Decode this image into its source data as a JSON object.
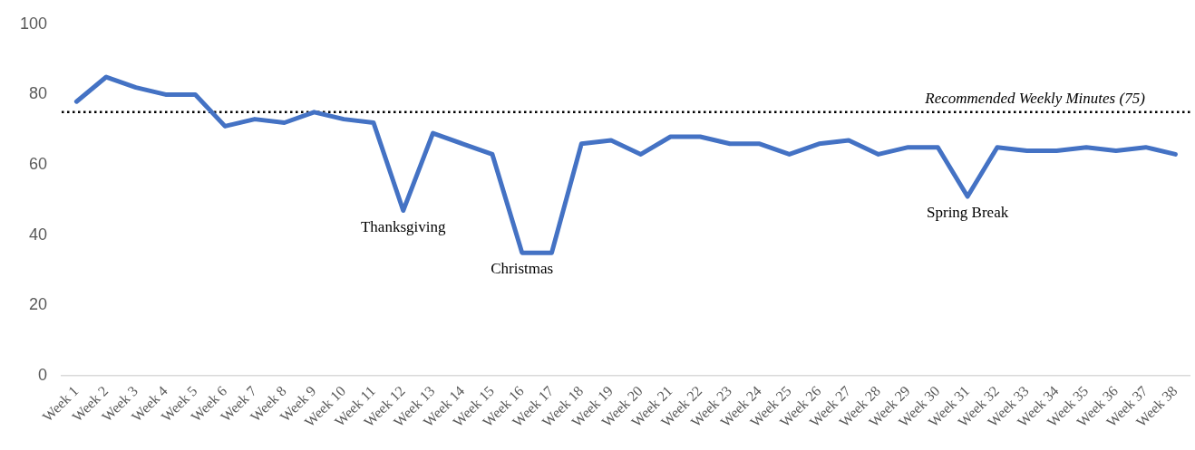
{
  "chart_data": {
    "type": "line",
    "categories": [
      "Week 1",
      "Week 2",
      "Week 3",
      "Week 4",
      "Week 5",
      "Week 6",
      "Week 7",
      "Week 8",
      "Week 9",
      "Week 10",
      "Week 11",
      "Week 12",
      "Week 13",
      "Week 14",
      "Week 15",
      "Week 16",
      "Week 17",
      "Week 18",
      "Week 19",
      "Week 20",
      "Week 21",
      "Week 22",
      "Week 23",
      "Week 24",
      "Week 25",
      "Week 26",
      "Week 27",
      "Week 28",
      "Week 29",
      "Week 30",
      "Week 31",
      "Week 32",
      "Week 33",
      "Week 34",
      "Week 35",
      "Week 36",
      "Week 37",
      "Week 38"
    ],
    "values": [
      78,
      85,
      82,
      80,
      80,
      71,
      73,
      72,
      75,
      73,
      72,
      47,
      69,
      66,
      63,
      35,
      35,
      66,
      67,
      63,
      68,
      68,
      66,
      66,
      63,
      66,
      67,
      63,
      65,
      65,
      51,
      65,
      64,
      64,
      65,
      64,
      65,
      63
    ],
    "color": "#4472c4",
    "ylim": [
      0,
      100
    ],
    "yticks": [
      0,
      20,
      40,
      60,
      80,
      100
    ],
    "grid": false,
    "legend": false,
    "marker": "none",
    "line_style": "solid",
    "ref_lines": [
      {
        "axis": "y",
        "value": 75,
        "label": "Recommended Weekly Minutes (75)",
        "color": "#000000",
        "line_style": "dotted"
      }
    ],
    "annotations": [
      {
        "text": "Thanksgiving",
        "x": "Week 12",
        "y": 47
      },
      {
        "text": "Christmas",
        "x": "Week 16",
        "y": 35
      },
      {
        "text": "Spring Break",
        "x": "Week 31",
        "y": 51
      }
    ]
  }
}
